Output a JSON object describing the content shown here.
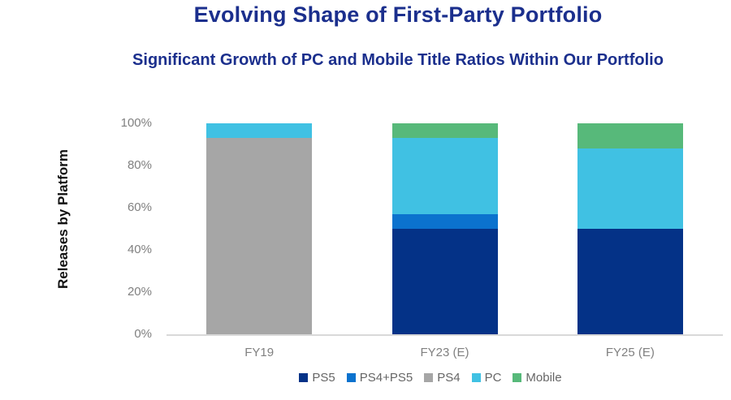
{
  "chart_data": {
    "type": "bar",
    "stacked": true,
    "units": "percent",
    "title": "Evolving Shape of First-Party Portfolio",
    "subtitle": "Significant Growth of PC and Mobile Title Ratios Within Our Portfolio",
    "ylabel": "Releases by Platform",
    "xlabel": "",
    "categories": [
      "FY19",
      "FY23 (E)",
      "FY25 (E)"
    ],
    "series": [
      {
        "name": "PS5",
        "color": "#043287",
        "values": [
          0,
          50,
          50
        ]
      },
      {
        "name": "PS4+PS5",
        "color": "#0b72ce",
        "values": [
          0,
          7,
          0
        ]
      },
      {
        "name": "PS4",
        "color": "#a6a6a6",
        "values": [
          93,
          0,
          0
        ]
      },
      {
        "name": "PC",
        "color": "#40c1e3",
        "values": [
          7,
          36,
          38
        ]
      },
      {
        "name": "Mobile",
        "color": "#57b97a",
        "values": [
          0,
          7,
          12
        ]
      }
    ],
    "yticks": [
      "100%",
      "80%",
      "60%",
      "40%",
      "20%",
      "0%"
    ],
    "ylim": [
      0,
      100
    ],
    "grid": false,
    "legend_position": "bottom"
  },
  "colors": {
    "title_text": "#1b2f8d",
    "axis_text": "#808080",
    "ylabel_text": "#111111",
    "legend_text": "#666666",
    "axis_line": "#d9d9d9",
    "background": "#ffffff"
  }
}
